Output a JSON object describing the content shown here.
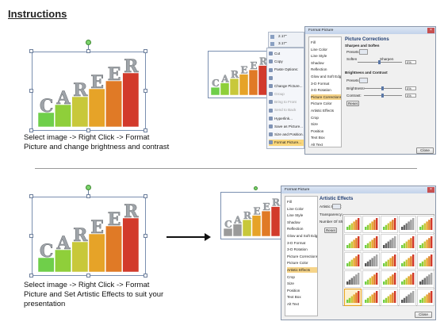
{
  "title": "Instructions",
  "image_word": "CAREER",
  "letters": [
    "C",
    "A",
    "R",
    "E",
    "E",
    "R"
  ],
  "step1_caption": [
    "Select image -> Right Click -> Format",
    "Picture and change brightness and contrast"
  ],
  "step2_caption": [
    "Select image -> Right Click -> Format",
    "Picture and Set Artistic Effects to suit your",
    "presentation"
  ],
  "mini_toolbar": {
    "width_value": "2.17\"",
    "height_value": "3.17\""
  },
  "context_menu": {
    "items": [
      {
        "label": "Cut",
        "disabled": false
      },
      {
        "label": "Copy",
        "disabled": false
      },
      {
        "label": "Paste Options:",
        "disabled": false
      },
      {
        "label": "",
        "disabled": false
      },
      {
        "label": "Change Picture...",
        "disabled": false
      },
      {
        "label": "Group",
        "disabled": true
      },
      {
        "label": "Bring to Front",
        "disabled": true
      },
      {
        "label": "Send to Back",
        "disabled": true
      },
      {
        "label": "Hyperlink...",
        "disabled": false
      },
      {
        "label": "Save as Picture...",
        "disabled": false
      },
      {
        "label": "Size and Position...",
        "disabled": false
      },
      {
        "label": "Format Picture...",
        "disabled": false
      }
    ]
  },
  "dialog1": {
    "title": "Format Picture",
    "nav": [
      "Fill",
      "Line Color",
      "Line Style",
      "Shadow",
      "Reflection",
      "Glow and Soft Edges",
      "3-D Format",
      "3-D Rotation",
      "Picture Corrections",
      "Picture Color",
      "Artistic Effects",
      "Crop",
      "Size",
      "Position",
      "Text Box",
      "Alt Text"
    ],
    "selected_nav": 8,
    "pane_title": "Picture Corrections",
    "sharpen_section": "Sharpen and Soften",
    "presets_label": "Presets:",
    "soften_label": "Soften",
    "sharpen_label": "Sharpen",
    "sharpen_value": "0%",
    "brightness_section": "Brightness and Contrast",
    "bc_presets_label": "Presets:",
    "brightness_label": "Brightness:",
    "brightness_value": "0%",
    "contrast_label": "Contrast:",
    "contrast_value": "0%",
    "reset_label": "Reset",
    "close_label": "Close"
  },
  "dialog2": {
    "title": "Format Picture",
    "nav": [
      "Fill",
      "Line Color",
      "Line Style",
      "Shadow",
      "Reflection",
      "Glow and Soft Edges",
      "3-D Format",
      "3-D Rotation",
      "Picture Corrections",
      "Picture Color",
      "Artistic Effects",
      "Crop",
      "Size",
      "Position",
      "Text Box",
      "Alt Text"
    ],
    "selected_nav": 10,
    "pane_title": "Artistic Effects",
    "effect_label": "Artistic Effect:",
    "transparency_label": "Transparency:",
    "shades_label": "Number Of Shad",
    "reset_label": "Reset",
    "close_label": "Close"
  },
  "colors": {
    "bar_green": "#5fc040",
    "bar_red": "#d23a2b",
    "highlight": "#f6d489"
  }
}
